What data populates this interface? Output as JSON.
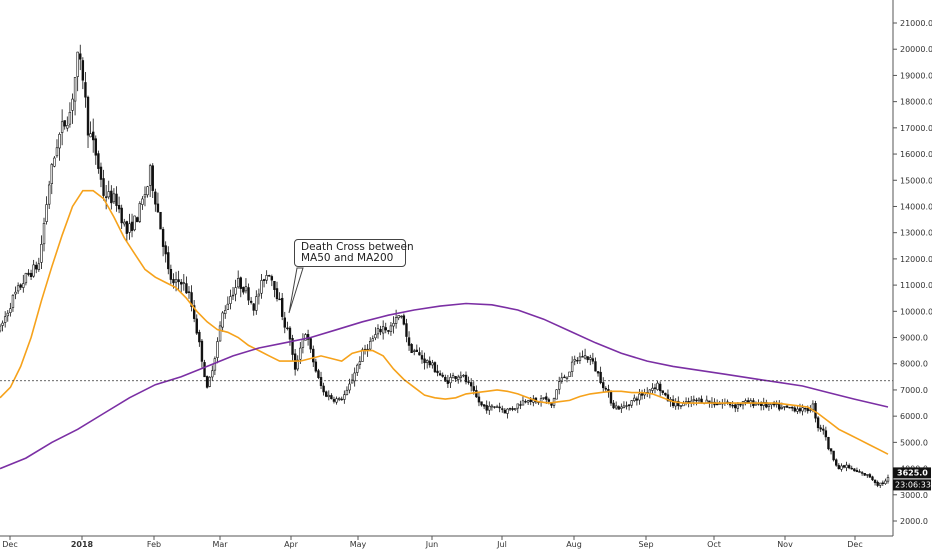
{
  "chart_data": {
    "type": "candlestick",
    "title": "",
    "xlabel": "",
    "ylabel": "",
    "ylim": [
      1500,
      21900
    ],
    "y_ticks": [
      "2000.0",
      "3000.0",
      "4000.0",
      "5000.0",
      "6000.0",
      "7000.0",
      "8000.0",
      "9000.0",
      "10000.0",
      "11000.0",
      "12000.0",
      "13000.0",
      "14000.0",
      "15000.0",
      "16000.0",
      "17000.0",
      "18000.0",
      "19000.0",
      "20000.0",
      "21000.0"
    ],
    "x_ticks": [
      "Dec",
      "2018",
      "Feb",
      "Mar",
      "Apr",
      "May",
      "Jun",
      "Jul",
      "Aug",
      "Sep",
      "Oct",
      "Nov",
      "Dec"
    ],
    "grid": false,
    "horizontal_line": 7350,
    "last_price_label": "3625.0",
    "countdown_label": "23:06:33",
    "annotation": {
      "line1": "Death Cross between",
      "line2": "MA50 and MA200"
    },
    "price_anchors": [
      [
        0,
        9300
      ],
      [
        5,
        10500
      ],
      [
        10,
        11300
      ],
      [
        15,
        11800
      ],
      [
        19,
        14900
      ],
      [
        22,
        16400
      ],
      [
        24,
        17000
      ],
      [
        27,
        17600
      ],
      [
        30,
        19600
      ],
      [
        32,
        19000
      ],
      [
        34,
        17000
      ],
      [
        37,
        16000
      ],
      [
        40,
        14500
      ],
      [
        45,
        14200
      ],
      [
        49,
        13000
      ],
      [
        53,
        13600
      ],
      [
        57,
        14800
      ],
      [
        58,
        15300
      ],
      [
        61,
        13800
      ],
      [
        65,
        11500
      ],
      [
        67,
        11000
      ],
      [
        70,
        11200
      ],
      [
        73,
        10600
      ],
      [
        75,
        9800
      ],
      [
        78,
        8200
      ],
      [
        80,
        7000
      ],
      [
        83,
        8300
      ],
      [
        86,
        9900
      ],
      [
        89,
        10600
      ],
      [
        92,
        11100
      ],
      [
        95,
        10800
      ],
      [
        98,
        10200
      ],
      [
        100,
        10700
      ],
      [
        102,
        11300
      ],
      [
        104,
        11500
      ],
      [
        106,
        11000
      ],
      [
        108,
        10300
      ],
      [
        110,
        9500
      ],
      [
        112,
        9000
      ],
      [
        113,
        8300
      ],
      [
        114,
        7700
      ],
      [
        116,
        8700
      ],
      [
        118,
        9200
      ],
      [
        121,
        8100
      ],
      [
        123,
        7400
      ],
      [
        125,
        6900
      ],
      [
        128,
        6700
      ],
      [
        131,
        6600
      ],
      [
        134,
        6900
      ],
      [
        137,
        7700
      ],
      [
        140,
        8400
      ],
      [
        143,
        8800
      ],
      [
        146,
        9200
      ],
      [
        148,
        9400
      ],
      [
        150,
        9300
      ],
      [
        152,
        9500
      ],
      [
        154,
        9800
      ],
      [
        156,
        9600
      ],
      [
        158,
        8600
      ],
      [
        160,
        8500
      ],
      [
        163,
        8200
      ],
      [
        166,
        8000
      ],
      [
        169,
        7700
      ],
      [
        172,
        7300
      ],
      [
        175,
        7500
      ],
      [
        178,
        7600
      ],
      [
        181,
        7200
      ],
      [
        184,
        6700
      ],
      [
        186,
        6400
      ],
      [
        189,
        6300
      ],
      [
        192,
        6400
      ],
      [
        195,
        6200
      ],
      [
        198,
        6300
      ],
      [
        201,
        6500
      ],
      [
        204,
        6700
      ],
      [
        207,
        6500
      ],
      [
        210,
        6700
      ],
      [
        213,
        6400
      ],
      [
        216,
        7300
      ],
      [
        219,
        7600
      ],
      [
        222,
        8100
      ],
      [
        225,
        8300
      ],
      [
        228,
        8200
      ],
      [
        231,
        7600
      ],
      [
        234,
        7000
      ],
      [
        237,
        6400
      ],
      [
        240,
        6300
      ],
      [
        243,
        6500
      ],
      [
        246,
        6700
      ],
      [
        249,
        6900
      ],
      [
        252,
        7100
      ],
      [
        254,
        7200
      ],
      [
        257,
        6700
      ],
      [
        260,
        6500
      ],
      [
        263,
        6400
      ],
      [
        266,
        6500
      ],
      [
        269,
        6600
      ],
      [
        272,
        6600
      ],
      [
        275,
        6500
      ],
      [
        278,
        6500
      ],
      [
        281,
        6500
      ],
      [
        284,
        6400
      ],
      [
        287,
        6500
      ],
      [
        290,
        6500
      ],
      [
        293,
        6500
      ],
      [
        296,
        6400
      ],
      [
        299,
        6400
      ],
      [
        302,
        6300
      ],
      [
        305,
        6300
      ],
      [
        308,
        6300
      ],
      [
        311,
        6200
      ],
      [
        314,
        6400
      ],
      [
        316,
        5600
      ],
      [
        318,
        5500
      ],
      [
        320,
        4800
      ],
      [
        322,
        4400
      ],
      [
        324,
        4000
      ],
      [
        327,
        4100
      ],
      [
        330,
        3900
      ],
      [
        333,
        3800
      ],
      [
        336,
        3700
      ],
      [
        339,
        3400
      ],
      [
        342,
        3500
      ],
      [
        343,
        3625
      ]
    ],
    "series": [
      {
        "name": "",
        "color": "#f6a21b",
        "points": [
          [
            0,
            6700
          ],
          [
            4,
            7100
          ],
          [
            8,
            7900
          ],
          [
            12,
            9000
          ],
          [
            16,
            10400
          ],
          [
            20,
            11700
          ],
          [
            24,
            12900
          ],
          [
            28,
            14000
          ],
          [
            32,
            14600
          ],
          [
            36,
            14600
          ],
          [
            40,
            14300
          ],
          [
            44,
            13600
          ],
          [
            48,
            12800
          ],
          [
            52,
            12200
          ],
          [
            56,
            11600
          ],
          [
            60,
            11300
          ],
          [
            64,
            11100
          ],
          [
            68,
            10900
          ],
          [
            72,
            10500
          ],
          [
            76,
            10000
          ],
          [
            80,
            9600
          ],
          [
            84,
            9300
          ],
          [
            88,
            9200
          ],
          [
            92,
            9000
          ],
          [
            96,
            8700
          ],
          [
            100,
            8500
          ],
          [
            104,
            8300
          ],
          [
            108,
            8100
          ],
          [
            112,
            8100
          ],
          [
            116,
            8100
          ],
          [
            120,
            8200
          ],
          [
            124,
            8300
          ],
          [
            128,
            8200
          ],
          [
            132,
            8100
          ],
          [
            136,
            8400
          ],
          [
            140,
            8500
          ],
          [
            144,
            8500
          ],
          [
            148,
            8300
          ],
          [
            152,
            7800
          ],
          [
            156,
            7400
          ],
          [
            160,
            7100
          ],
          [
            164,
            6800
          ],
          [
            168,
            6700
          ],
          [
            172,
            6650
          ],
          [
            176,
            6700
          ],
          [
            180,
            6850
          ],
          [
            184,
            6900
          ],
          [
            188,
            6950
          ],
          [
            192,
            7000
          ],
          [
            196,
            6950
          ],
          [
            200,
            6850
          ],
          [
            204,
            6700
          ],
          [
            208,
            6550
          ],
          [
            212,
            6500
          ],
          [
            216,
            6550
          ],
          [
            220,
            6600
          ],
          [
            224,
            6750
          ],
          [
            228,
            6850
          ],
          [
            232,
            6900
          ],
          [
            236,
            6950
          ],
          [
            240,
            6950
          ],
          [
            244,
            6900
          ],
          [
            248,
            6900
          ],
          [
            252,
            6850
          ],
          [
            256,
            6700
          ],
          [
            260,
            6550
          ],
          [
            264,
            6500
          ],
          [
            268,
            6500
          ],
          [
            272,
            6500
          ],
          [
            276,
            6500
          ],
          [
            280,
            6500
          ],
          [
            284,
            6500
          ],
          [
            288,
            6500
          ],
          [
            292,
            6500
          ],
          [
            296,
            6500
          ],
          [
            300,
            6500
          ],
          [
            304,
            6450
          ],
          [
            308,
            6400
          ],
          [
            312,
            6350
          ],
          [
            316,
            6100
          ],
          [
            320,
            5800
          ],
          [
            324,
            5500
          ],
          [
            328,
            5300
          ],
          [
            332,
            5100
          ],
          [
            336,
            4900
          ],
          [
            340,
            4700
          ],
          [
            343,
            4550
          ]
        ]
      },
      {
        "name": "",
        "color": "#7b2fa4",
        "points": [
          [
            0,
            4000
          ],
          [
            10,
            4400
          ],
          [
            20,
            5000
          ],
          [
            30,
            5500
          ],
          [
            40,
            6100
          ],
          [
            50,
            6700
          ],
          [
            60,
            7200
          ],
          [
            70,
            7500
          ],
          [
            80,
            7900
          ],
          [
            90,
            8300
          ],
          [
            100,
            8600
          ],
          [
            110,
            8800
          ],
          [
            120,
            9000
          ],
          [
            130,
            9300
          ],
          [
            140,
            9600
          ],
          [
            150,
            9850
          ],
          [
            160,
            10050
          ],
          [
            170,
            10200
          ],
          [
            180,
            10300
          ],
          [
            190,
            10250
          ],
          [
            200,
            10050
          ],
          [
            210,
            9700
          ],
          [
            220,
            9250
          ],
          [
            230,
            8800
          ],
          [
            240,
            8400
          ],
          [
            250,
            8100
          ],
          [
            260,
            7900
          ],
          [
            270,
            7750
          ],
          [
            280,
            7600
          ],
          [
            290,
            7450
          ],
          [
            300,
            7300
          ],
          [
            310,
            7150
          ],
          [
            320,
            6900
          ],
          [
            330,
            6650
          ],
          [
            343,
            6350
          ]
        ]
      }
    ]
  }
}
